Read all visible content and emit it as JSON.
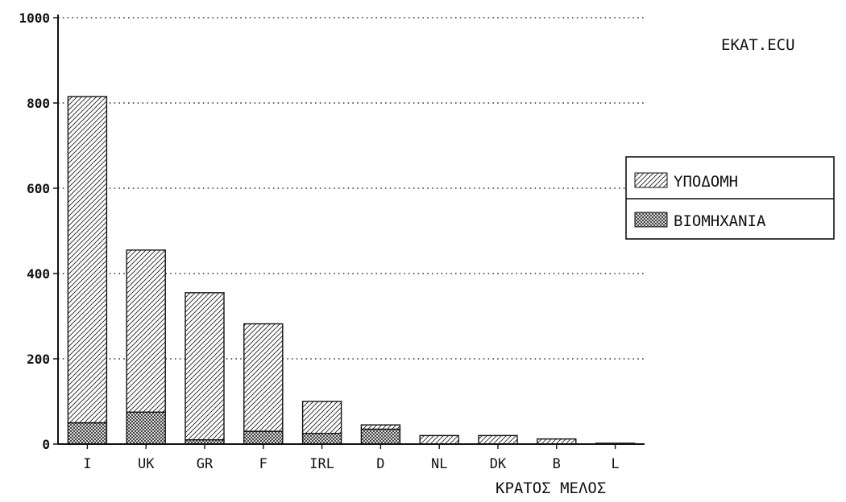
{
  "chart_data": {
    "type": "bar",
    "stacked": true,
    "title": "",
    "unit_label": "EKAT.ECU",
    "xlabel": "ΚΡΑΤΟΣ ΜΕΛΟΣ",
    "ylabel": "",
    "ylim": [
      0,
      1000
    ],
    "yticks": [
      "0",
      "200",
      "400",
      "600",
      "800",
      "1000"
    ],
    "grid": "horizontal-dotted",
    "legend_position": "right",
    "categories": [
      "I",
      "UK",
      "GR",
      "F",
      "IRL",
      "D",
      "NL",
      "DK",
      "B",
      "L"
    ],
    "series": [
      {
        "name": "ΒΙΟΜΗΧΑΝΙΑ",
        "values": [
          50,
          75,
          10,
          30,
          25,
          35,
          0,
          0,
          0,
          0
        ]
      },
      {
        "name": "ΥΠΟΔΟΜΗ",
        "values": [
          765,
          380,
          345,
          252,
          75,
          10,
          20,
          20,
          12,
          2
        ]
      }
    ]
  }
}
